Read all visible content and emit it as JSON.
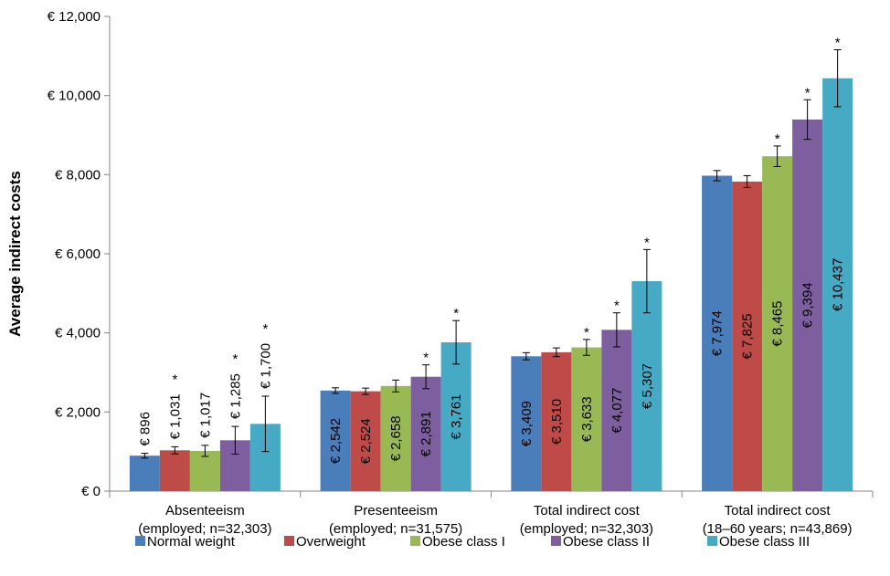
{
  "chart_data": {
    "type": "bar",
    "ylabel": "Average indirect costs",
    "ylim": [
      0,
      12000
    ],
    "yticks": [
      "€ 0",
      "€ 2,000",
      "€ 4,000",
      "€ 6,000",
      "€ 8,000",
      "€ 10,000",
      "€ 12,000"
    ],
    "ytick_values": [
      0,
      2000,
      4000,
      6000,
      8000,
      10000,
      12000
    ],
    "categories": [
      [
        "Absenteeism",
        "(employed; n=32,303)"
      ],
      [
        "Presenteeism",
        "(employed; n=31,575)"
      ],
      [
        "Total indirect cost",
        "(employed; n=32,303)"
      ],
      [
        "Total indirect cost",
        "(18–60 years; n=43,869)"
      ]
    ],
    "series": [
      {
        "name": "Normal weight",
        "color": "#4a7ebb",
        "values": [
          896,
          2542,
          3409,
          7974
        ],
        "labels": [
          "€ 896",
          "€ 2,542",
          "€ 3,409",
          "€ 7,974"
        ],
        "error": [
          60,
          70,
          90,
          130
        ],
        "significant": [
          false,
          false,
          false,
          false
        ]
      },
      {
        "name": "Overweight",
        "color": "#be4b48",
        "values": [
          1031,
          2524,
          3510,
          7825
        ],
        "labels": [
          "€ 1,031",
          "€ 2,524",
          "€ 3,510",
          "€ 7,825"
        ],
        "error": [
          90,
          80,
          110,
          150
        ],
        "significant": [
          true,
          false,
          false,
          false
        ]
      },
      {
        "name": "Obese class I",
        "color": "#98b954",
        "values": [
          1017,
          2658,
          3633,
          8465
        ],
        "labels": [
          "€ 1,017",
          "€ 2,658",
          "€ 3,633",
          "€ 8,465"
        ],
        "error": [
          140,
          150,
          200,
          260
        ],
        "significant": [
          false,
          false,
          true,
          true
        ]
      },
      {
        "name": "Obese class II",
        "color": "#7d5fa0",
        "values": [
          1285,
          2891,
          4077,
          9394
        ],
        "labels": [
          "€ 1,285",
          "€ 2,891",
          "€ 4,077",
          "€ 9,394"
        ],
        "error": [
          350,
          300,
          430,
          500
        ],
        "significant": [
          true,
          true,
          true,
          true
        ]
      },
      {
        "name": "Obese class III",
        "color": "#46aac5",
        "values": [
          1700,
          3761,
          5307,
          10437
        ],
        "labels": [
          "€ 1,700",
          "€ 3,761",
          "€ 5,307",
          "€ 10,437"
        ],
        "error": [
          700,
          550,
          800,
          720
        ],
        "significant": [
          true,
          true,
          true,
          true
        ]
      }
    ],
    "significance_marker": "*",
    "legend_position": "bottom",
    "grid": false
  }
}
